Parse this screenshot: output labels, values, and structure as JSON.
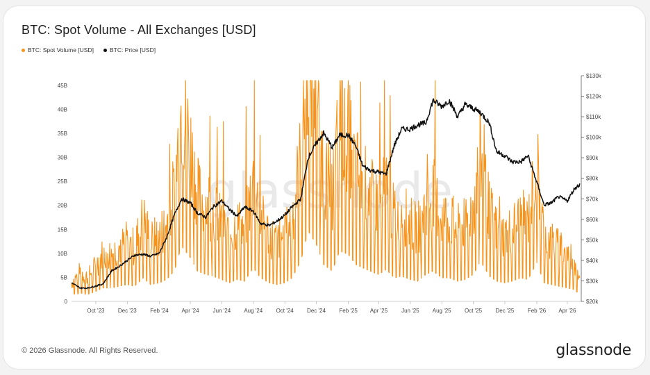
{
  "title": "BTC: Spot Volume - All Exchanges [USD]",
  "legend": [
    {
      "label": "BTC: Spot Volume [USD]",
      "color": "#f7931a"
    },
    {
      "label": "BTC: Price [USD]",
      "color": "#111111"
    }
  ],
  "watermark": "glassnode",
  "footer": {
    "copyright": "© 2026 Glassnode. All Rights Reserved.",
    "brand": "glassnode"
  },
  "chart_data": {
    "type": "line",
    "xlabel": "",
    "ylabel": "",
    "x_ticks": [
      "Oct '23",
      "Dec '23",
      "Feb '24",
      "Apr '24",
      "Jun '24",
      "Aug '24",
      "Oct '24",
      "Dec '24",
      "Feb '25",
      "Apr '25",
      "Jun '25",
      "Aug '25",
      "Oct '25",
      "Dec '25",
      "Feb '26",
      "Apr '26"
    ],
    "y_left_ticks": [
      "0",
      "5B",
      "10B",
      "15B",
      "20B",
      "25B",
      "30B",
      "35B",
      "40B",
      "45B"
    ],
    "y_left_range": [
      0,
      47
    ],
    "y_right_ticks": [
      "$20k",
      "$30k",
      "$40k",
      "$50k",
      "$60k",
      "$70k",
      "$80k",
      "$90k",
      "$100k",
      "$110k",
      "$120k",
      "$130k"
    ],
    "y_right_range": [
      20000,
      130000
    ],
    "series": [
      {
        "name": "BTC: Spot Volume [USD]",
        "axis": "left",
        "color": "#f7931a",
        "style": "spiky-line",
        "x": [
          "2023-08-15",
          "2023-09-01",
          "2023-09-15",
          "2023-10-01",
          "2023-10-15",
          "2023-11-01",
          "2023-11-15",
          "2023-12-01",
          "2023-12-15",
          "2024-01-01",
          "2024-01-15",
          "2024-02-01",
          "2024-02-15",
          "2024-03-01",
          "2024-03-15",
          "2024-04-01",
          "2024-04-15",
          "2024-05-01",
          "2024-05-15",
          "2024-06-01",
          "2024-06-15",
          "2024-07-01",
          "2024-07-15",
          "2024-08-01",
          "2024-08-15",
          "2024-09-01",
          "2024-09-15",
          "2024-10-01",
          "2024-10-15",
          "2024-11-01",
          "2024-11-15",
          "2024-12-01",
          "2024-12-15",
          "2025-01-01",
          "2025-01-15",
          "2025-02-01",
          "2025-02-15",
          "2025-03-01",
          "2025-03-15",
          "2025-04-01",
          "2025-04-15",
          "2025-05-01",
          "2025-05-15",
          "2025-06-01",
          "2025-06-15",
          "2025-07-01",
          "2025-07-15",
          "2025-08-01",
          "2025-08-15",
          "2025-09-01",
          "2025-09-15",
          "2025-10-01",
          "2025-10-15",
          "2025-11-01",
          "2025-11-15",
          "2025-12-01",
          "2025-12-15",
          "2026-01-01",
          "2026-01-15",
          "2026-02-01",
          "2026-02-15",
          "2026-03-01",
          "2026-03-15",
          "2026-04-01",
          "2026-04-15",
          "2026-04-25"
        ],
        "values": [
          3,
          5,
          4,
          6,
          8,
          8,
          9,
          10,
          9,
          14,
          10,
          11,
          13,
          18,
          33,
          26,
          18,
          16,
          15,
          13,
          11,
          13,
          12,
          20,
          14,
          11,
          10,
          11,
          14,
          24,
          42,
          34,
          22,
          18,
          30,
          28,
          22,
          20,
          18,
          16,
          19,
          14,
          15,
          13,
          12,
          16,
          18,
          14,
          14,
          12,
          13,
          16,
          24,
          15,
          12,
          11,
          12,
          14,
          13,
          23,
          11,
          10,
          9,
          8,
          7,
          4
        ]
      },
      {
        "name": "BTC: Price [USD]",
        "axis": "right",
        "color": "#111111",
        "x": [
          "2023-08-15",
          "2023-09-01",
          "2023-09-15",
          "2023-10-01",
          "2023-10-15",
          "2023-11-01",
          "2023-11-15",
          "2023-12-01",
          "2023-12-15",
          "2024-01-01",
          "2024-01-15",
          "2024-02-01",
          "2024-02-15",
          "2024-03-01",
          "2024-03-15",
          "2024-04-01",
          "2024-04-15",
          "2024-05-01",
          "2024-05-15",
          "2024-06-01",
          "2024-06-15",
          "2024-07-01",
          "2024-07-15",
          "2024-08-01",
          "2024-08-15",
          "2024-09-01",
          "2024-09-15",
          "2024-10-01",
          "2024-10-15",
          "2024-11-01",
          "2024-11-15",
          "2024-12-01",
          "2024-12-15",
          "2025-01-01",
          "2025-01-15",
          "2025-02-01",
          "2025-02-15",
          "2025-03-01",
          "2025-03-15",
          "2025-04-01",
          "2025-04-15",
          "2025-05-01",
          "2025-05-15",
          "2025-06-01",
          "2025-06-15",
          "2025-07-01",
          "2025-07-15",
          "2025-08-01",
          "2025-08-15",
          "2025-09-01",
          "2025-09-15",
          "2025-10-01",
          "2025-10-15",
          "2025-11-01",
          "2025-11-15",
          "2025-12-01",
          "2025-12-15",
          "2026-01-01",
          "2026-01-15",
          "2026-02-01",
          "2026-02-15",
          "2026-03-01",
          "2026-03-15",
          "2026-04-01",
          "2026-04-15",
          "2026-04-25"
        ],
        "values": [
          29000,
          26500,
          26500,
          27500,
          28500,
          35000,
          37000,
          40000,
          42500,
          43000,
          42000,
          43500,
          51000,
          62000,
          70000,
          68000,
          63000,
          61000,
          66000,
          69000,
          65000,
          61500,
          66000,
          64000,
          58000,
          57000,
          59000,
          62000,
          66000,
          70000,
          90000,
          97000,
          102000,
          95000,
          101000,
          101000,
          96000,
          86000,
          84000,
          83000,
          82000,
          96000,
          104000,
          104000,
          106000,
          107000,
          118000,
          115000,
          118000,
          110000,
          116000,
          114000,
          112000,
          107000,
          93000,
          91000,
          88000,
          88000,
          91000,
          78000,
          67000,
          68000,
          71000,
          69000,
          75000,
          77000
        ]
      }
    ],
    "grid": false,
    "legend_position": "top-left"
  }
}
